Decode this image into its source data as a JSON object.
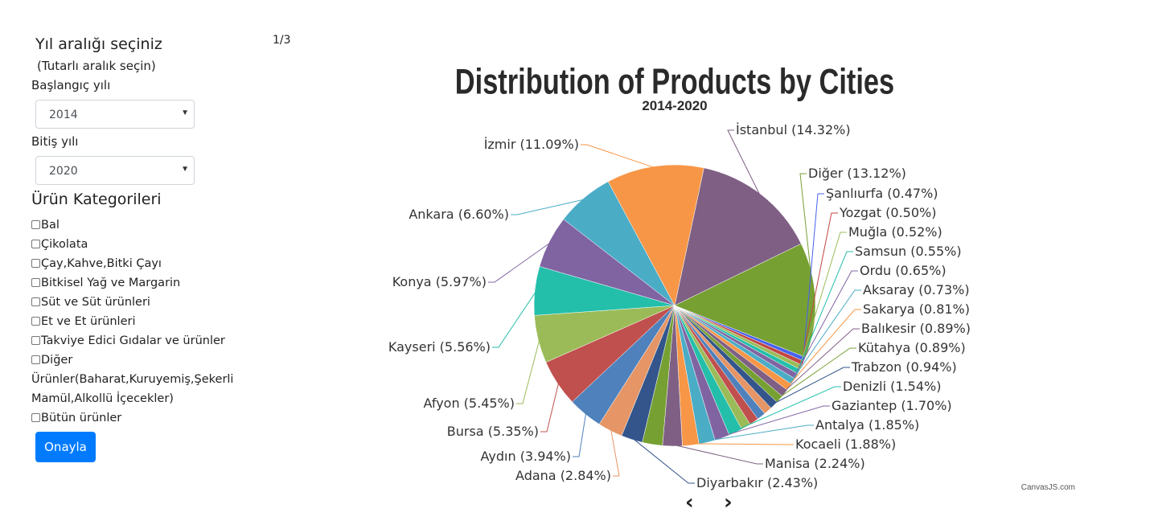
{
  "pager": "1/3",
  "filters": {
    "title": "Yıl aralığı seçiniz",
    "subtitle": "(Tutarlı aralık seçin)",
    "start_label": "Başlangıç yılı",
    "start_value": "2014",
    "end_label": "Bitiş yılı",
    "end_value": "2020",
    "categories_title": "Ürün Kategorileri",
    "categories": [
      "Bal",
      "Çikolata",
      "Çay,Kahve,Bitki Çayı",
      "Bitkisel Yağ ve Margarin",
      "Süt ve Süt ürünleri",
      "Et ve Et ürünleri",
      "Takviye Edici Gıdalar ve ürünler",
      "Diğer Ürünler(Baharat,Kuruyemiş,Şekerli Mamül,Alkollü İçecekler)",
      "Bütün ürünler"
    ],
    "submit_label": "Onayla"
  },
  "nav": {
    "prev": "‹",
    "next": "›"
  },
  "credit": "CanvasJS.com",
  "chart_data": {
    "type": "pie",
    "title": "Distribution of Products by Cities",
    "subtitle": "2014-2020",
    "slices": [
      {
        "label": "İstanbul",
        "value": 14.32,
        "color": "#7f6084"
      },
      {
        "label": "Diğer",
        "value": 13.12,
        "color": "#77a033"
      },
      {
        "label": "Şanlıurfa",
        "value": 0.47,
        "color": "#4661ee"
      },
      {
        "label": "Yozgat",
        "value": 0.5,
        "color": "#c24642"
      },
      {
        "label": "Muğla",
        "value": 0.52,
        "color": "#9bbb58"
      },
      {
        "label": "Samsun",
        "value": 0.55,
        "color": "#23bfaa"
      },
      {
        "label": "Ordu",
        "value": 0.65,
        "color": "#8064a2"
      },
      {
        "label": "Aksaray",
        "value": 0.73,
        "color": "#4bacc6"
      },
      {
        "label": "Sakarya",
        "value": 0.81,
        "color": "#f79646"
      },
      {
        "label": "Balıkesir",
        "value": 0.89,
        "color": "#7f6084"
      },
      {
        "label": "Kütahya",
        "value": 0.89,
        "color": "#77a033"
      },
      {
        "label": "Trabzon",
        "value": 0.94,
        "color": "#33558b"
      },
      {
        "label": "",
        "value": 0.95,
        "color": "#e59566"
      },
      {
        "label": "",
        "value": 0.97,
        "color": "#4f81bc"
      },
      {
        "label": "",
        "value": 1.05,
        "color": "#c0504e"
      },
      {
        "label": "",
        "value": 1.1,
        "color": "#9bbb58"
      },
      {
        "label": "Denizli",
        "value": 1.54,
        "color": "#23bfaa"
      },
      {
        "label": "Gaziantep",
        "value": 1.7,
        "color": "#8064a2"
      },
      {
        "label": "Antalya",
        "value": 1.85,
        "color": "#4bacc6"
      },
      {
        "label": "Kocaeli",
        "value": 1.88,
        "color": "#f79646"
      },
      {
        "label": "Manisa",
        "value": 2.24,
        "color": "#7f6084"
      },
      {
        "label": "",
        "value": 2.3,
        "color": "#77a033"
      },
      {
        "label": "Diyarbakır",
        "value": 2.43,
        "color": "#33558b"
      },
      {
        "label": "Adana",
        "value": 2.84,
        "color": "#e59566"
      },
      {
        "label": "Aydın",
        "value": 3.94,
        "color": "#4f81bc"
      },
      {
        "label": "Bursa",
        "value": 5.35,
        "color": "#c0504e"
      },
      {
        "label": "Afyon",
        "value": 5.45,
        "color": "#9bbb58"
      },
      {
        "label": "Kayseri",
        "value": 5.56,
        "color": "#23bfaa"
      },
      {
        "label": "Konya",
        "value": 5.97,
        "color": "#8064a2"
      },
      {
        "label": "Ankara",
        "value": 6.6,
        "color": "#4bacc6"
      },
      {
        "label": "İzmir",
        "value": 11.09,
        "color": "#f79646"
      }
    ]
  }
}
